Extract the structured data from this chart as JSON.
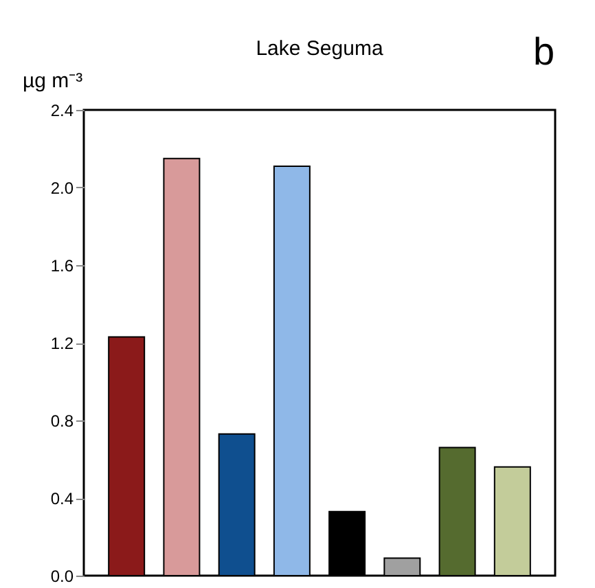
{
  "chart_data": {
    "type": "bar",
    "title": "Lake Seguma",
    "ylabel": "µg m⁻³",
    "annotations": [
      "b"
    ],
    "categories": [
      null,
      null,
      null,
      null,
      null,
      null,
      null,
      null
    ],
    "values": [
      1.23,
      2.15,
      0.73,
      2.11,
      0.33,
      0.09,
      0.66,
      0.56
    ],
    "colors": [
      "#8b1a1a",
      "#d89a9a",
      "#0f4f8f",
      "#8fb8e8",
      "#000000",
      "#a0a0a0",
      "#556b2f",
      "#c3cc9a"
    ],
    "ylim": [
      0,
      2.4
    ],
    "yticks": [
      {
        "value": 0,
        "label": "0.0"
      },
      {
        "value": 0.4,
        "label": "0.4"
      },
      {
        "value": 0.8,
        "label": "0.8"
      },
      {
        "value": 1.2,
        "label": "1.2"
      },
      {
        "value": 1.6,
        "label": "1.6"
      },
      {
        "value": 2,
        "label": "2.0"
      },
      {
        "value": 2.4,
        "label": "2.4"
      }
    ],
    "grid": false,
    "legend": false
  }
}
